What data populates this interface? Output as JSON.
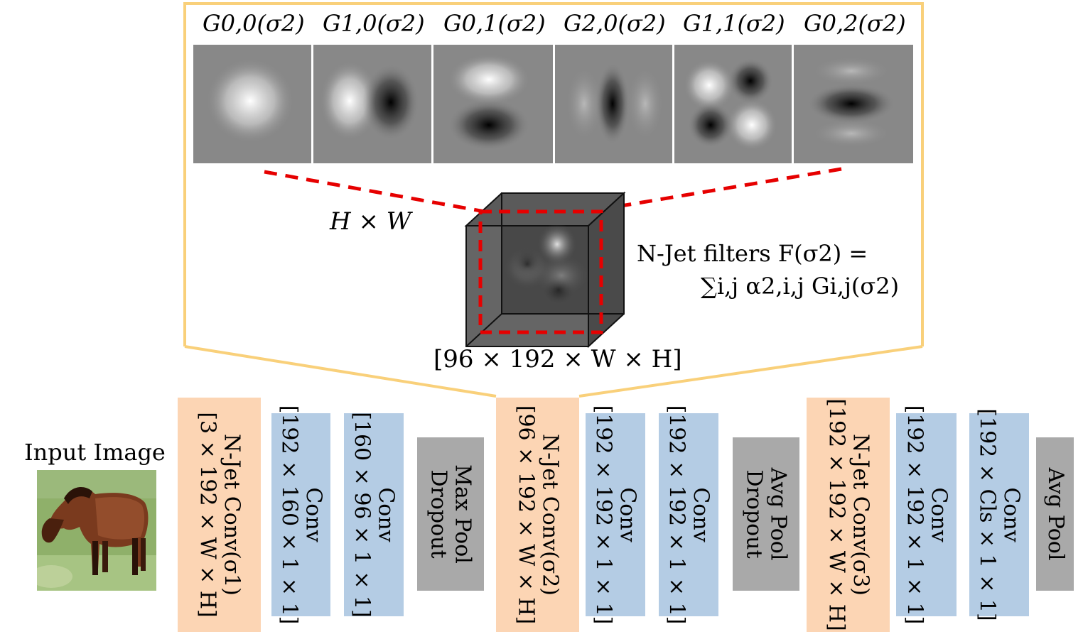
{
  "filters": {
    "labels": [
      "G0,0(σ2)",
      "G1,0(σ2)",
      "G0,1(σ2)",
      "G2,0(σ2)",
      "G1,1(σ2)",
      "G0,2(σ2)"
    ],
    "label_parts": [
      {
        "base": "G",
        "sub": "0,0",
        "arg": "(σ",
        "argsub": "2",
        "close": ")"
      },
      {
        "base": "G",
        "sub": "1,0",
        "arg": "(σ",
        "argsub": "2",
        "close": ")"
      },
      {
        "base": "G",
        "sub": "0,1",
        "arg": "(σ",
        "argsub": "2",
        "close": ")"
      },
      {
        "base": "G",
        "sub": "2,0",
        "arg": "(σ",
        "argsub": "2",
        "close": ")"
      },
      {
        "base": "G",
        "sub": "1,1",
        "arg": "(σ",
        "argsub": "2",
        "close": ")"
      },
      {
        "base": "G",
        "sub": "0,2",
        "arg": "(σ",
        "argsub": "2",
        "close": ")"
      }
    ]
  },
  "cube": {
    "hw_label": "H × W",
    "dims_label": "[96 × 192 × W × H]"
  },
  "njet_caption": {
    "line1": "N-Jet filters F(σ2) =",
    "line2": "∑i,j α2,i,j Gi,j(σ2)"
  },
  "input": {
    "label": "Input Image"
  },
  "network": {
    "blocks": [
      {
        "kind": "njet",
        "lines": [
          "N-Jet Conv(σ1)",
          "[3 × 192 × W × H]"
        ]
      },
      {
        "kind": "conv",
        "lines": [
          "Conv",
          "[192 × 160 × 1 × 1]"
        ]
      },
      {
        "kind": "conv",
        "lines": [
          "Conv",
          "[160 × 96 × 1 × 1]"
        ]
      },
      {
        "kind": "pool",
        "lines": [
          "Max Pool",
          "Dropout"
        ]
      },
      {
        "kind": "njet",
        "lines": [
          "N-Jet Conv(σ2)",
          "[96 × 192 × W × H]"
        ]
      },
      {
        "kind": "conv",
        "lines": [
          "Conv",
          "[192 × 192 × 1 × 1]"
        ]
      },
      {
        "kind": "conv",
        "lines": [
          "Conv",
          "[192 × 192 × 1 × 1]"
        ]
      },
      {
        "kind": "pool",
        "lines": [
          "Avg Pool",
          "Dropout"
        ]
      },
      {
        "kind": "njet",
        "lines": [
          "N-Jet Conv(σ3)",
          "[192 × 192 × W × H]"
        ]
      },
      {
        "kind": "conv",
        "lines": [
          "Conv",
          "[192 × 192 × 1 × 1]"
        ]
      },
      {
        "kind": "conv",
        "lines": [
          "Conv",
          "[192 × Cls × 1 × 1]"
        ]
      },
      {
        "kind": "pool",
        "lines": [
          "Avg Pool"
        ]
      }
    ]
  },
  "colors": {
    "njet": "#fcd5b4",
    "conv": "#b4cce4",
    "pool": "#a9a9a9",
    "callout": "#f9d07a",
    "dashed": "#e60000",
    "filter_bg": "#888888"
  }
}
